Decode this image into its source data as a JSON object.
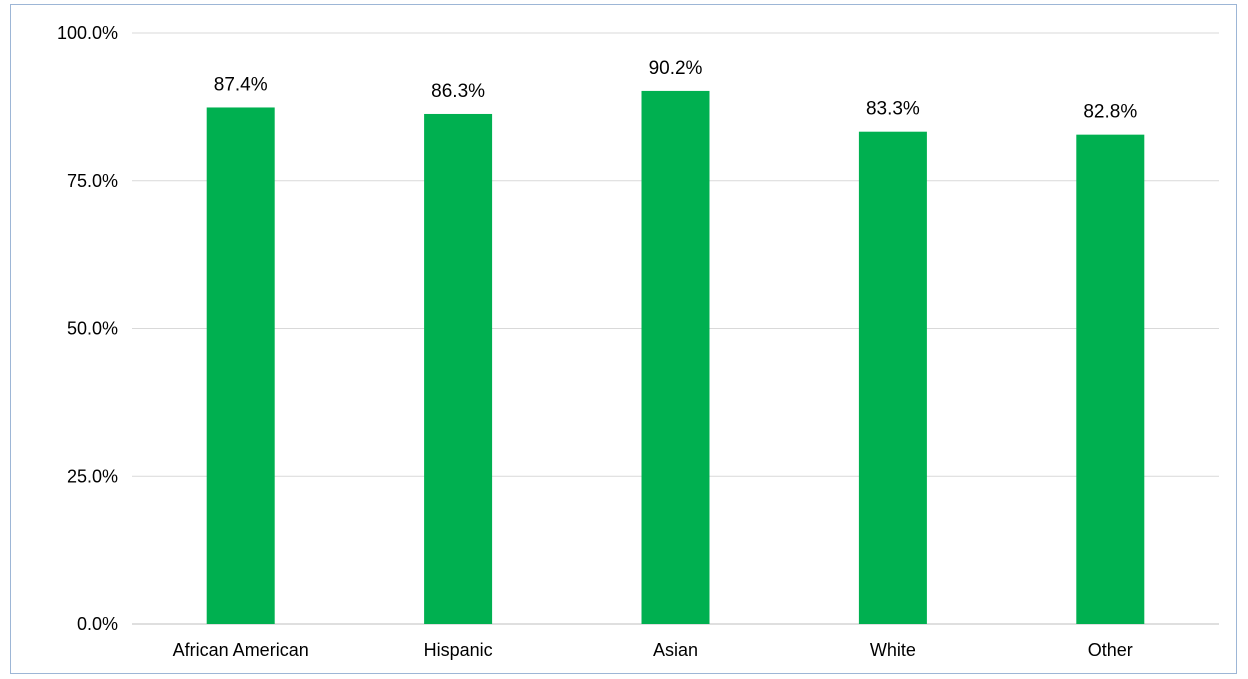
{
  "chart_data": {
    "type": "bar",
    "categories": [
      "African American",
      "Hispanic",
      "Asian",
      "White",
      "Other"
    ],
    "values": [
      87.4,
      86.3,
      90.2,
      83.3,
      82.8
    ],
    "data_labels": [
      "87.4%",
      "86.3%",
      "90.2%",
      "83.3%",
      "82.8%"
    ],
    "title": "",
    "xlabel": "",
    "ylabel": "",
    "ylim": [
      0,
      100
    ],
    "yticks": [
      0,
      25,
      50,
      75,
      100
    ],
    "ytick_labels": [
      "0.0%",
      "25.0%",
      "50.0%",
      "75.0%",
      "100.0%"
    ],
    "grid": true,
    "legend": "none",
    "bar_color": "#00b050"
  }
}
